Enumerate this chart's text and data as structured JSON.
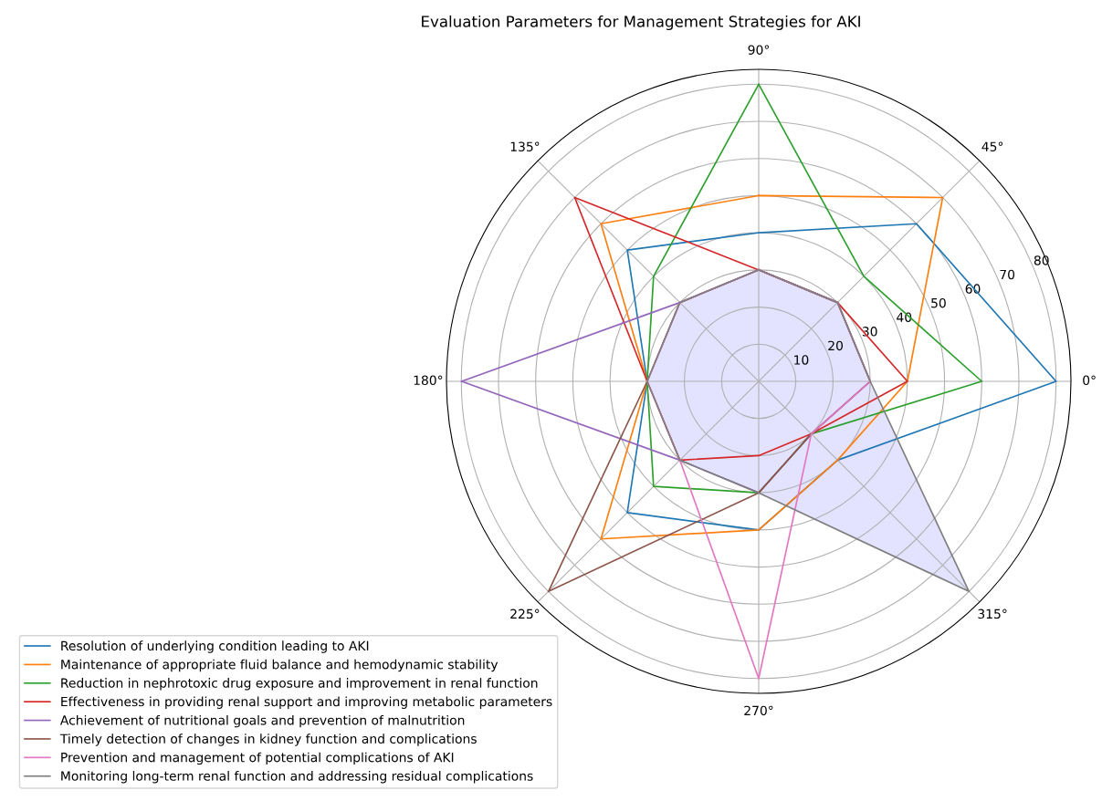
{
  "chart_data": {
    "type": "radar",
    "title": "Evaluation Parameters for Management Strategies for AKI",
    "categories": [
      "90°",
      "45°",
      "0°",
      "315°",
      "270°",
      "225°",
      "180°",
      "135°"
    ],
    "ylim": [
      0,
      84
    ],
    "yticks": [
      10,
      20,
      30,
      40,
      50,
      60,
      70,
      80
    ],
    "grid": true,
    "legend": "bottom left",
    "series": [
      {
        "name": "Resolution of underlying condition leading to AKI",
        "color": "#1f77b4",
        "values": [
          40,
          60,
          80,
          30,
          40,
          50,
          30,
          50
        ]
      },
      {
        "name": "Maintenance of appropriate fluid balance and hemodynamic stability",
        "color": "#ff7f0e",
        "values": [
          50,
          70,
          40,
          30,
          40,
          60,
          30,
          60
        ]
      },
      {
        "name": "Reduction in nephrotoxic drug exposure and improvement in renal function",
        "color": "#2ca02c",
        "values": [
          80,
          40,
          60,
          20,
          30,
          40,
          30,
          40
        ]
      },
      {
        "name": "Effectiveness in providing renal support and improving metabolic parameters",
        "color": "#d62728",
        "values": [
          30,
          30,
          40,
          20,
          20,
          30,
          30,
          70
        ]
      },
      {
        "name": "Achievement of nutritional goals and prevention of malnutrition",
        "color": "#9467bd",
        "values": [
          30,
          30,
          30,
          20,
          30,
          30,
          80,
          30
        ]
      },
      {
        "name": "Timely detection of changes in kidney function and complications",
        "color": "#8c564b",
        "values": [
          30,
          30,
          30,
          20,
          30,
          80,
          30,
          30
        ]
      },
      {
        "name": "Prevention and management of potential complications of AKI",
        "color": "#e377c2",
        "values": [
          30,
          30,
          30,
          20,
          80,
          30,
          30,
          30
        ]
      },
      {
        "name": "Monitoring long-term renal function and addressing residual complications",
        "color": "#7f7f7f",
        "type": "area",
        "values": [
          30,
          30,
          30,
          80,
          30,
          30,
          30,
          30
        ]
      }
    ]
  }
}
